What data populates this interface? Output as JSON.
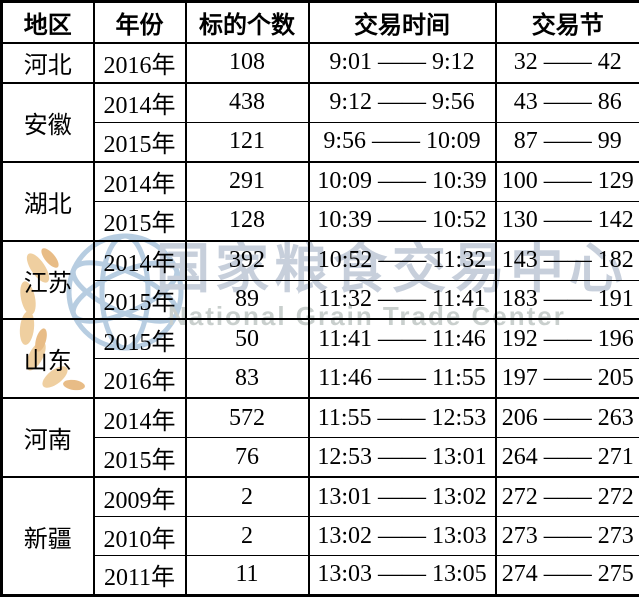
{
  "watermark": {
    "cn": "国家粮食交易中心",
    "en": "National Grain Trade Center",
    "colors": {
      "cn_text": "#c7cfdb",
      "en_text": "#c9cfcd",
      "globe": "#b7cde1",
      "wheat": "#efcfa0",
      "wheat_dark": "#e8bc86"
    }
  },
  "table": {
    "headers": [
      "地区",
      "年份",
      "标的个数",
      "交易时间",
      "交易节"
    ],
    "groups": [
      {
        "region": "河北",
        "rows": [
          {
            "year": "2016年",
            "count": "108",
            "time": "9:01 —— 9:12",
            "session": "32 —— 42"
          }
        ]
      },
      {
        "region": "安徽",
        "rows": [
          {
            "year": "2014年",
            "count": "438",
            "time": "9:12 —— 9:56",
            "session": "43 —— 86"
          },
          {
            "year": "2015年",
            "count": "121",
            "time": "9:56 —— 10:09",
            "session": "87 —— 99"
          }
        ]
      },
      {
        "region": "湖北",
        "rows": [
          {
            "year": "2014年",
            "count": "291",
            "time": "10:09 —— 10:39",
            "session": "100 —— 129"
          },
          {
            "year": "2015年",
            "count": "128",
            "time": "10:39 —— 10:52",
            "session": "130 —— 142"
          }
        ]
      },
      {
        "region": "江苏",
        "rows": [
          {
            "year": "2014年",
            "count": "392",
            "time": "10:52 —— 11:32",
            "session": "143 —— 182"
          },
          {
            "year": "2015年",
            "count": "89",
            "time": "11:32 —— 11:41",
            "session": "183 —— 191"
          }
        ]
      },
      {
        "region": "山东",
        "rows": [
          {
            "year": "2015年",
            "count": "50",
            "time": "11:41 —— 11:46",
            "session": "192 —— 196"
          },
          {
            "year": "2016年",
            "count": "83",
            "time": "11:46 —— 11:55",
            "session": "197 —— 205"
          }
        ]
      },
      {
        "region": "河南",
        "rows": [
          {
            "year": "2014年",
            "count": "572",
            "time": "11:55 —— 12:53",
            "session": "206 —— 263"
          },
          {
            "year": "2015年",
            "count": "76",
            "time": "12:53 —— 13:01",
            "session": "264 —— 271"
          }
        ]
      },
      {
        "region": "新疆",
        "rows": [
          {
            "year": "2009年",
            "count": "2",
            "time": "13:01 —— 13:02",
            "session": "272 —— 272"
          },
          {
            "year": "2010年",
            "count": "2",
            "time": "13:02 —— 13:03",
            "session": "273 —— 273"
          },
          {
            "year": "2011年",
            "count": "11",
            "time": "13:03 —— 13:05",
            "session": "274 —— 275"
          }
        ]
      }
    ]
  }
}
